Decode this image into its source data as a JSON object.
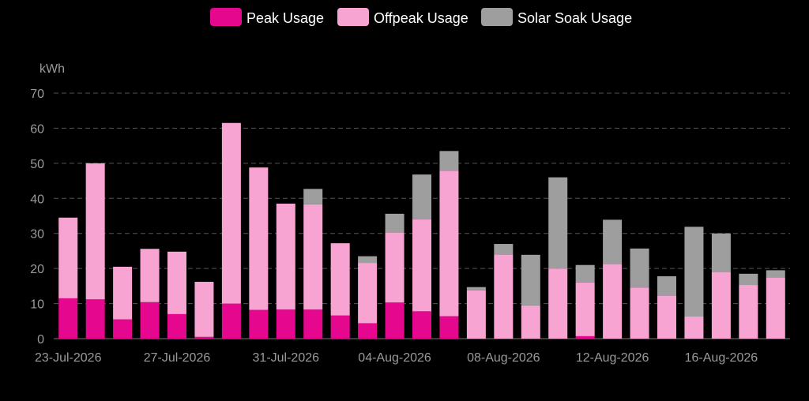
{
  "chart_data": {
    "type": "bar",
    "stacked": true,
    "ylabel": "kWh",
    "ylim": [
      0,
      70
    ],
    "yticks": [
      0,
      10,
      20,
      30,
      40,
      50,
      60,
      70
    ],
    "grid": true,
    "legend_position": "top-center",
    "categories": [
      "23-Jul-2026",
      "24-Jul-2026",
      "25-Jul-2026",
      "26-Jul-2026",
      "27-Jul-2026",
      "28-Jul-2026",
      "29-Jul-2026",
      "30-Jul-2026",
      "31-Jul-2026",
      "01-Aug-2026",
      "02-Aug-2026",
      "03-Aug-2026",
      "04-Aug-2026",
      "05-Aug-2026",
      "06-Aug-2026",
      "07-Aug-2026",
      "08-Aug-2026",
      "09-Aug-2026",
      "10-Aug-2026",
      "11-Aug-2026",
      "12-Aug-2026",
      "13-Aug-2026",
      "14-Aug-2026",
      "15-Aug-2026",
      "16-Aug-2026",
      "17-Aug-2026",
      "18-Aug-2026"
    ],
    "x_tick_labels": [
      "23-Jul-2026",
      "27-Jul-2026",
      "31-Jul-2026",
      "04-Aug-2026",
      "08-Aug-2026",
      "12-Aug-2026",
      "16-Aug-2026"
    ],
    "series": [
      {
        "name": "Peak Usage",
        "color": "#e5088f",
        "values": [
          11.5,
          11.2,
          5.5,
          10.4,
          7.0,
          0.5,
          10.0,
          8.2,
          8.3,
          8.3,
          6.6,
          4.4,
          10.3,
          7.8,
          6.4,
          0,
          0,
          0,
          0,
          0.7,
          0,
          0,
          0,
          0,
          0,
          0,
          0
        ]
      },
      {
        "name": "Offpeak Usage",
        "color": "#f8a4d2",
        "values": [
          23.0,
          38.8,
          15.0,
          15.2,
          17.8,
          15.7,
          51.5,
          40.6,
          30.2,
          30.0,
          20.6,
          17.2,
          20.0,
          26.2,
          41.5,
          13.8,
          24.0,
          9.5,
          20.0,
          15.3,
          21.3,
          14.6,
          12.3,
          6.3,
          19.0,
          15.3,
          17.5
        ]
      },
      {
        "name": "Solar Soak Usage",
        "color": "#9e9e9e",
        "values": [
          0,
          0,
          0,
          0,
          0,
          0,
          0,
          0,
          0,
          4.4,
          0,
          1.9,
          5.3,
          12.8,
          5.6,
          0.9,
          3.0,
          14.4,
          26.0,
          5.0,
          12.6,
          11.1,
          5.5,
          25.6,
          11.0,
          3.2,
          2.0
        ]
      }
    ]
  }
}
